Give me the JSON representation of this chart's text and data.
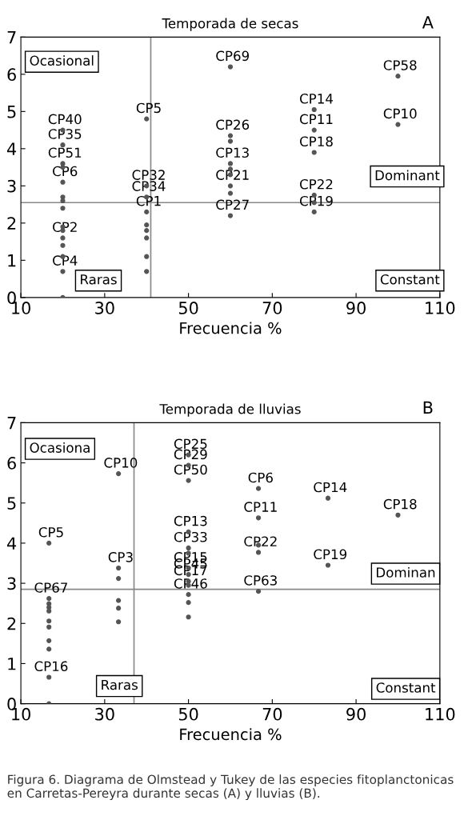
{
  "chart_data": [
    {
      "type": "scatter",
      "title": "Temporada de secas",
      "xlabel": "Frecuencia %",
      "xlim": [
        10,
        110
      ],
      "ylim": [
        0,
        7
      ],
      "xticks": [
        10,
        30,
        50,
        70,
        90,
        110
      ],
      "yticks": [
        0,
        1,
        2,
        3,
        4,
        5,
        6,
        7
      ],
      "grid": false,
      "marker": "circle",
      "series": [
        {
          "color": "#555555",
          "x": [
            20,
            20,
            20,
            20,
            20,
            20,
            20,
            20,
            20,
            20,
            20,
            20,
            20,
            20,
            20,
            40,
            40,
            40,
            40,
            40,
            40,
            40,
            40,
            40,
            60,
            60,
            60,
            60,
            60,
            60,
            60,
            60,
            60,
            80,
            80,
            80,
            80,
            80,
            80,
            100,
            100
          ],
          "values": [
            4.5,
            4.1,
            3.6,
            3.5,
            3.1,
            2.7,
            2.6,
            2.4,
            1.9,
            1.8,
            1.6,
            1.4,
            1.1,
            0.7,
            0,
            4.8,
            3.0,
            2.7,
            2.3,
            1.95,
            1.8,
            1.6,
            1.1,
            0.7,
            6.2,
            4.35,
            4.2,
            3.6,
            3.45,
            3.3,
            3.0,
            2.8,
            2.2,
            5.05,
            4.5,
            3.9,
            2.75,
            2.55,
            2.3,
            5.95,
            4.65
          ]
        }
      ],
      "ref_lines": [
        {
          "axis": "x",
          "value": 41,
          "color": "#888888"
        },
        {
          "axis": "y",
          "value": 2.55,
          "color": "#888888"
        }
      ],
      "annotations": [
        "Ocasional",
        "Raras",
        "Dominant",
        "Constant",
        "A",
        {
          "text": "CP69",
          "x": 60,
          "y": 6.2
        },
        {
          "text": "CP5",
          "x": 40,
          "y": 4.8
        },
        {
          "text": "CP40",
          "x": 20,
          "y": 4.5
        },
        {
          "text": "CP35",
          "x": 20,
          "y": 4.1
        },
        {
          "text": "CP51",
          "x": 20,
          "y": 3.6
        },
        {
          "text": "CP6",
          "x": 20,
          "y": 3.1
        },
        {
          "text": "CP2",
          "x": 20,
          "y": 1.6
        },
        {
          "text": "CP4",
          "x": 20,
          "y": 0.7
        },
        {
          "text": "CP32",
          "x": 40,
          "y": 3.0
        },
        {
          "text": "CP34",
          "x": 40,
          "y": 2.7
        },
        {
          "text": "CP1",
          "x": 40,
          "y": 2.3
        },
        {
          "text": "CP26",
          "x": 60,
          "y": 4.35
        },
        {
          "text": "CP13",
          "x": 60,
          "y": 3.6
        },
        {
          "text": "CP21",
          "x": 60,
          "y": 3.0
        },
        {
          "text": "CP27",
          "x": 60,
          "y": 2.2
        },
        {
          "text": "CP14",
          "x": 80,
          "y": 5.05
        },
        {
          "text": "CP11",
          "x": 80,
          "y": 4.5
        },
        {
          "text": "CP18",
          "x": 80,
          "y": 3.9
        },
        {
          "text": "CP22",
          "x": 80,
          "y": 2.75
        },
        {
          "text": "CP19",
          "x": 80,
          "y": 2.3
        },
        {
          "text": "CP58",
          "x": 100,
          "y": 5.95
        },
        {
          "text": "CP10",
          "x": 100,
          "y": 4.65
        }
      ]
    },
    {
      "type": "scatter",
      "title": "Temporada de lluvias",
      "xlabel": "Frecuencia %",
      "xlim": [
        10,
        110
      ],
      "ylim": [
        0,
        7
      ],
      "xticks": [
        10,
        30,
        50,
        70,
        90,
        110
      ],
      "yticks": [
        0,
        1,
        2,
        3,
        4,
        5,
        6,
        7
      ],
      "grid": false,
      "marker": "circle",
      "series": [
        {
          "color": "#555555",
          "x": [
            16.7,
            16.7,
            16.7,
            16.7,
            16.7,
            16.7,
            16.7,
            16.7,
            16.7,
            16.7,
            16.7,
            33.3,
            33.3,
            33.3,
            33.3,
            33.3,
            33.3,
            50,
            50,
            50,
            50,
            50,
            50,
            50,
            50,
            50,
            50,
            50,
            50,
            50,
            66.7,
            66.7,
            66.7,
            66.7,
            66.7,
            83.3,
            83.3,
            100
          ],
          "values": [
            4.0,
            2.62,
            2.49,
            2.4,
            2.31,
            2.06,
            1.91,
            1.57,
            1.36,
            0.66,
            0,
            5.73,
            3.38,
            3.12,
            2.57,
            2.38,
            2.04,
            6.2,
            5.94,
            5.56,
            4.28,
            3.88,
            3.75,
            3.38,
            3.22,
            3.05,
            2.95,
            2.72,
            2.52,
            2.16,
            5.36,
            4.63,
            3.95,
            3.77,
            2.8,
            5.12,
            3.45,
            4.7
          ]
        }
      ],
      "ref_lines": [
        {
          "axis": "x",
          "value": 37,
          "color": "#888888"
        },
        {
          "axis": "y",
          "value": 2.85,
          "color": "#888888"
        }
      ],
      "annotations": [
        "Ocasiona",
        "Raras",
        "Dominan",
        "Constant",
        "B",
        "Figura 6. Diagrama de Olmstead y Tukey de las especies fitoplanctonicas en Carretas-Pereyra durante secas (A) y lluvias (B).",
        {
          "text": "CP25",
          "x": 50,
          "y": 6.2
        },
        {
          "text": "CP29",
          "x": 50,
          "y": 5.94
        },
        {
          "text": "CP50",
          "x": 50,
          "y": 5.56
        },
        {
          "text": "CP13",
          "x": 50,
          "y": 4.28
        },
        {
          "text": "CP33",
          "x": 50,
          "y": 3.88
        },
        {
          "text": "CP15",
          "x": 50,
          "y": 3.38
        },
        {
          "text": "CP45",
          "x": 50,
          "y": 3.22
        },
        {
          "text": "CP17",
          "x": 50,
          "y": 3.05
        },
        {
          "text": "CP46",
          "x": 50,
          "y": 2.72
        },
        {
          "text": "CP10",
          "x": 33.3,
          "y": 5.73
        },
        {
          "text": "CP3",
          "x": 33.3,
          "y": 3.38
        },
        {
          "text": "CP5",
          "x": 16.7,
          "y": 4.0
        },
        {
          "text": "CP67",
          "x": 16.7,
          "y": 2.62
        },
        {
          "text": "CP16",
          "x": 16.7,
          "y": 0.66
        },
        {
          "text": "CP6",
          "x": 66.7,
          "y": 5.36
        },
        {
          "text": "CP11",
          "x": 66.7,
          "y": 4.63
        },
        {
          "text": "CP22",
          "x": 66.7,
          "y": 3.77
        },
        {
          "text": "CP63",
          "x": 66.7,
          "y": 2.8
        },
        {
          "text": "CP14",
          "x": 83.3,
          "y": 5.12
        },
        {
          "text": "CP19",
          "x": 83.3,
          "y": 3.45
        },
        {
          "text": "CP18",
          "x": 100,
          "y": 4.7
        }
      ]
    }
  ]
}
